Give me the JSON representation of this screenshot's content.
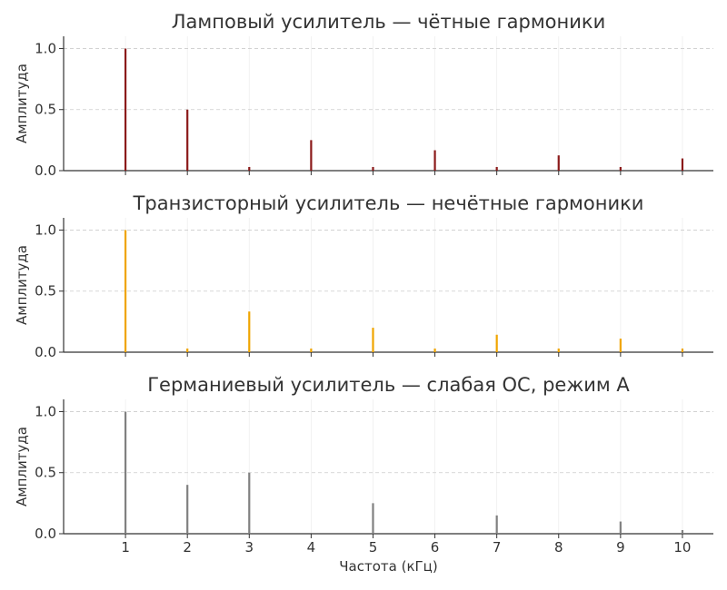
{
  "chart_data": [
    {
      "type": "bar",
      "title": "Ламповый усилитель — чётные гармоники",
      "ylabel": "Амплитуда",
      "xlabel": "",
      "color": "#8b1a1a",
      "x": [
        1,
        2,
        3,
        4,
        5,
        6,
        7,
        8,
        9,
        10
      ],
      "values": [
        1.0,
        0.5,
        0.03,
        0.25,
        0.03,
        0.167,
        0.03,
        0.125,
        0.03,
        0.1
      ],
      "ylim": [
        0,
        1.1
      ],
      "yticks": [
        "0.0",
        "0.5",
        "1.0"
      ],
      "grid": true
    },
    {
      "type": "bar",
      "title": "Транзисторный усилитель — нечётные гармоники",
      "ylabel": "Амплитуда",
      "xlabel": "",
      "color": "#f0a500",
      "x": [
        1,
        2,
        3,
        4,
        5,
        6,
        7,
        8,
        9,
        10
      ],
      "values": [
        1.0,
        0.03,
        0.333,
        0.03,
        0.2,
        0.03,
        0.143,
        0.03,
        0.111,
        0.03
      ],
      "ylim": [
        0,
        1.1
      ],
      "yticks": [
        "0.0",
        "0.5",
        "1.0"
      ],
      "grid": true
    },
    {
      "type": "bar",
      "title": "Германиевый усилитель — слабая ОС, режим А",
      "ylabel": "Амплитуда",
      "xlabel": "Частота (кГц)",
      "color": "#808080",
      "x": [
        1,
        2,
        3,
        4,
        5,
        6,
        7,
        8,
        9,
        10
      ],
      "values": [
        1.0,
        0.4,
        0.5,
        0.0,
        0.25,
        0.0,
        0.15,
        0.0,
        0.1,
        0.03
      ],
      "ylim": [
        0,
        1.1
      ],
      "yticks": [
        "0.0",
        "0.5",
        "1.0"
      ],
      "xticks": [
        "1",
        "2",
        "3",
        "4",
        "5",
        "6",
        "7",
        "8",
        "9",
        "10"
      ],
      "grid": true
    }
  ]
}
